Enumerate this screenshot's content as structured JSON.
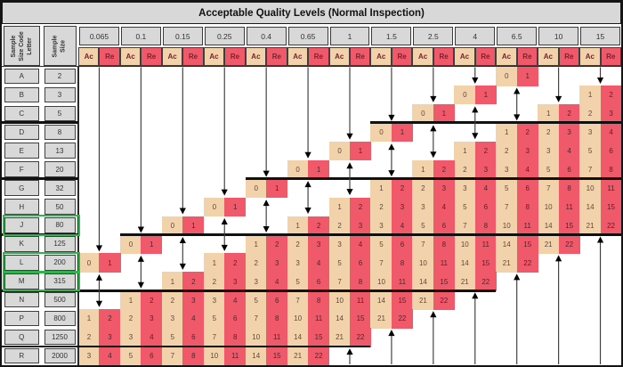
{
  "title": "Acceptable Quality Levels (Normal Inspection)",
  "left_headers": [
    {
      "id": "sample-size-code-letter",
      "lines": [
        "Sample",
        "Size Code",
        "Letter"
      ]
    },
    {
      "id": "sample-size",
      "lines": [
        "Sample",
        "Size"
      ]
    }
  ],
  "aql_levels": [
    "0.065",
    "0.1",
    "0.15",
    "0.25",
    "0.4",
    "0.65",
    "1",
    "1.5",
    "2.5",
    "4",
    "6.5",
    "10",
    "15"
  ],
  "subheaders": [
    "Ac",
    "Re"
  ],
  "rows": [
    {
      "letter": "A",
      "size": "2",
      "cells": {
        "6.5": [
          0,
          1
        ]
      }
    },
    {
      "letter": "B",
      "size": "3",
      "cells": {
        "4": [
          0,
          1
        ],
        "15": [
          1,
          2
        ]
      }
    },
    {
      "letter": "C",
      "size": "5",
      "cells": {
        "2.5": [
          0,
          1
        ],
        "10": [
          1,
          2
        ],
        "15": [
          2,
          3
        ]
      }
    },
    {
      "letter": "D",
      "size": "8",
      "cells": {
        "1.5": [
          0,
          1
        ],
        "6.5": [
          1,
          2
        ],
        "10": [
          2,
          3
        ],
        "15": [
          3,
          4
        ]
      }
    },
    {
      "letter": "E",
      "size": "13",
      "cells": {
        "1": [
          0,
          1
        ],
        "4": [
          1,
          2
        ],
        "6.5": [
          2,
          3
        ],
        "10": [
          3,
          4
        ],
        "15": [
          5,
          6
        ]
      }
    },
    {
      "letter": "F",
      "size": "20",
      "cells": {
        "0.65": [
          0,
          1
        ],
        "2.5": [
          1,
          2
        ],
        "4": [
          2,
          3
        ],
        "6.5": [
          3,
          4
        ],
        "10": [
          5,
          6
        ],
        "15": [
          7,
          8
        ]
      }
    },
    {
      "letter": "G",
      "size": "32",
      "cells": {
        "0.4": [
          0,
          1
        ],
        "1.5": [
          1,
          2
        ],
        "2.5": [
          2,
          3
        ],
        "4": [
          3,
          4
        ],
        "6.5": [
          5,
          6
        ],
        "10": [
          7,
          8
        ],
        "15": [
          10,
          11
        ]
      }
    },
    {
      "letter": "H",
      "size": "50",
      "cells": {
        "0.25": [
          0,
          1
        ],
        "1": [
          1,
          2
        ],
        "1.5": [
          2,
          3
        ],
        "2.5": [
          3,
          4
        ],
        "4": [
          5,
          6
        ],
        "6.5": [
          7,
          8
        ],
        "10": [
          10,
          11
        ],
        "15": [
          14,
          15
        ]
      }
    },
    {
      "letter": "J",
      "size": "80",
      "highlight": true,
      "cells": {
        "0.15": [
          0,
          1
        ],
        "0.65": [
          1,
          2
        ],
        "1": [
          2,
          3
        ],
        "1.5": [
          3,
          4
        ],
        "2.5": [
          5,
          6
        ],
        "4": [
          7,
          8
        ],
        "6.5": [
          10,
          11
        ],
        "10": [
          14,
          15
        ],
        "15": [
          21,
          22
        ]
      }
    },
    {
      "letter": "K",
      "size": "125",
      "cells": {
        "0.1": [
          0,
          1
        ],
        "0.4": [
          1,
          2
        ],
        "0.65": [
          2,
          3
        ],
        "1": [
          3,
          4
        ],
        "1.5": [
          5,
          6
        ],
        "2.5": [
          7,
          8
        ],
        "4": [
          10,
          11
        ],
        "6.5": [
          14,
          15
        ],
        "10": [
          21,
          22
        ]
      }
    },
    {
      "letter": "L",
      "size": "200",
      "highlight": true,
      "cells": {
        "0.065": [
          0,
          1
        ],
        "0.25": [
          1,
          2
        ],
        "0.4": [
          2,
          3
        ],
        "0.65": [
          3,
          4
        ],
        "1": [
          5,
          6
        ],
        "1.5": [
          7,
          8
        ],
        "2.5": [
          10,
          11
        ],
        "4": [
          14,
          15
        ],
        "6.5": [
          21,
          22
        ]
      }
    },
    {
      "letter": "M",
      "size": "315",
      "highlight": true,
      "cells": {
        "0.15": [
          1,
          2
        ],
        "0.25": [
          2,
          3
        ],
        "0.4": [
          3,
          4
        ],
        "0.65": [
          5,
          6
        ],
        "1": [
          7,
          8
        ],
        "1.5": [
          10,
          11
        ],
        "2.5": [
          14,
          15
        ],
        "4": [
          21,
          22
        ]
      }
    },
    {
      "letter": "N",
      "size": "500",
      "cells": {
        "0.1": [
          1,
          2
        ],
        "0.15": [
          2,
          3
        ],
        "0.25": [
          3,
          4
        ],
        "0.4": [
          5,
          6
        ],
        "0.65": [
          7,
          8
        ],
        "1": [
          10,
          11
        ],
        "1.5": [
          14,
          15
        ],
        "2.5": [
          21,
          22
        ]
      }
    },
    {
      "letter": "P",
      "size": "800",
      "cells": {
        "0.065": [
          1,
          2
        ],
        "0.1": [
          2,
          3
        ],
        "0.15": [
          3,
          4
        ],
        "0.25": [
          5,
          6
        ],
        "0.4": [
          7,
          8
        ],
        "0.65": [
          10,
          11
        ],
        "1": [
          14,
          15
        ],
        "1.5": [
          21,
          22
        ]
      }
    },
    {
      "letter": "Q",
      "size": "1250",
      "cells": {
        "0.065": [
          2,
          3
        ],
        "0.1": [
          3,
          4
        ],
        "0.15": [
          5,
          6
        ],
        "0.25": [
          7,
          8
        ],
        "0.4": [
          10,
          11
        ],
        "0.65": [
          14,
          15
        ],
        "1": [
          21,
          22
        ]
      }
    },
    {
      "letter": "R",
      "size": "2000",
      "cells": {
        "0.065": [
          3,
          4
        ],
        "0.1": [
          5,
          6
        ],
        "0.15": [
          7,
          8
        ],
        "0.25": [
          10,
          11
        ],
        "0.4": [
          14,
          15
        ],
        "0.65": [
          21,
          22
        ]
      }
    }
  ],
  "arrows": {
    "down": [
      {
        "col": "0.065",
        "to": "L"
      },
      {
        "col": "0.1",
        "to": "K"
      },
      {
        "col": "0.15",
        "to": "J"
      },
      {
        "col": "0.25",
        "to": "H"
      },
      {
        "col": "0.4",
        "to": "G"
      },
      {
        "col": "0.65",
        "to": "F"
      },
      {
        "col": "1",
        "to": "E"
      },
      {
        "col": "1.5",
        "to": "D"
      },
      {
        "col": "2.5",
        "to": "C"
      },
      {
        "col": "4",
        "to": "B"
      },
      {
        "col": "10",
        "to": "C"
      },
      {
        "col": "15",
        "to": "B"
      }
    ],
    "double": [
      {
        "col": "0.065",
        "rows": [
          "M",
          "N"
        ]
      },
      {
        "col": "0.1",
        "rows": [
          "L",
          "M"
        ]
      },
      {
        "col": "0.15",
        "rows": [
          "K",
          "L"
        ]
      },
      {
        "col": "0.25",
        "rows": [
          "J",
          "K"
        ]
      },
      {
        "col": "0.4",
        "rows": [
          "H",
          "J"
        ]
      },
      {
        "col": "0.65",
        "rows": [
          "G",
          "H"
        ]
      },
      {
        "col": "1",
        "rows": [
          "F",
          "G"
        ]
      },
      {
        "col": "1.5",
        "rows": [
          "E",
          "F"
        ]
      },
      {
        "col": "2.5",
        "rows": [
          "D",
          "E"
        ]
      },
      {
        "col": "4",
        "rows": [
          "C",
          "D"
        ]
      },
      {
        "col": "6.5",
        "rows": [
          "B",
          "C"
        ]
      }
    ],
    "up": [
      {
        "col": "1",
        "from": "R"
      },
      {
        "col": "1.5",
        "from": "Q"
      },
      {
        "col": "2.5",
        "from": "P"
      },
      {
        "col": "4",
        "from": "N"
      },
      {
        "col": "6.5",
        "from": "M"
      },
      {
        "col": "10",
        "from": "L"
      },
      {
        "col": "15",
        "from": "K"
      }
    ]
  },
  "heavy_lines": [
    {
      "below": "C",
      "left_block": true,
      "from_col": "1.5",
      "to_col": "15"
    },
    {
      "below": "F",
      "left_block": true,
      "from_col": "0.4",
      "to_col": "15"
    },
    {
      "below": "J",
      "left_block": true,
      "from_col": "0.1",
      "to_col": "15"
    },
    {
      "below": "M",
      "left_block": true,
      "from_col": "0.065",
      "to_col": "4"
    },
    {
      "below": "Q",
      "left_block": true,
      "from_col": "0.065",
      "to_col": "1"
    }
  ],
  "highlighted_rows": [
    "J",
    "L",
    "M"
  ],
  "colors": {
    "header_bg": "#d8d8d8",
    "ac_bg": "#f2d2aa",
    "re_bg": "#f0596a",
    "acre_label_text": "#74242f",
    "ac_text": "#5f4a3c",
    "re_text": "#55232e",
    "highlight_border": "#2fb34a",
    "heavy_line": "#111111",
    "arrow": "#3c3c3c",
    "border": "#141414"
  }
}
